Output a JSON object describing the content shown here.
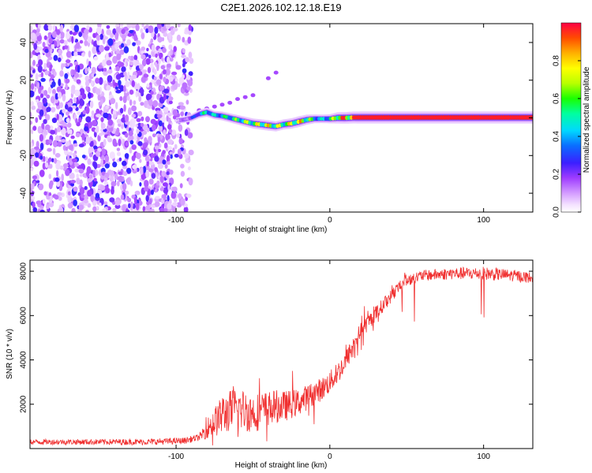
{
  "title": "C2E1.2026.102.12.18.E19",
  "chart_data": [
    {
      "type": "heatmap",
      "name": "spectrogram",
      "xlabel": "Height of straight line (km)",
      "ylabel": "Frequency (Hz)",
      "xlim": [
        -195,
        132
      ],
      "ylim": [
        -50,
        50
      ],
      "xticks": [
        -100,
        0,
        100
      ],
      "yticks": [
        -40,
        -20,
        0,
        20,
        40
      ],
      "colorbar": {
        "label": "Normalized spectral amplitude",
        "range": [
          0,
          1
        ],
        "ticks": [
          0.0,
          0.2,
          0.4,
          0.6,
          0.8
        ],
        "tick_labels": [
          "0.0",
          "0.2",
          "0.4",
          "0.6",
          "0.8"
        ]
      },
      "noise_region_x": [
        -195,
        -90
      ],
      "signal_ridge": {
        "x": [
          -100,
          -95,
          -90,
          -85,
          -80,
          -75,
          -70,
          -65,
          -60,
          -55,
          -50,
          -45,
          -40,
          -35,
          -30,
          -25,
          -20,
          -15,
          -10,
          -5,
          0,
          5,
          10,
          15,
          20,
          40,
          60,
          80,
          100,
          120,
          132
        ],
        "freq": [
          -1.5,
          -1,
          0,
          2,
          3,
          1.5,
          1,
          0,
          -1,
          -2,
          -3,
          -3.5,
          -4,
          -4.5,
          -3.5,
          -3,
          -2,
          -1,
          -0.5,
          -0.5,
          -0.5,
          0,
          0,
          0.2,
          0.2,
          0.2,
          0.2,
          0.2,
          0.2,
          0.2,
          0.2
        ],
        "amplitude": [
          0.1,
          0.15,
          0.25,
          0.4,
          0.55,
          0.45,
          0.5,
          0.55,
          0.6,
          0.65,
          0.7,
          0.72,
          0.75,
          0.7,
          0.7,
          0.75,
          0.8,
          0.7,
          0.5,
          0.45,
          0.55,
          0.85,
          0.9,
          0.95,
          0.97,
          0.97,
          0.97,
          0.97,
          0.97,
          0.97,
          0.97
        ]
      },
      "aliased_branch": {
        "x": [
          -85,
          -80,
          -75,
          -70,
          -65,
          -60,
          -55,
          -50,
          -40,
          -35
        ],
        "freq": [
          4,
          5,
          6,
          7,
          8,
          10,
          11,
          12,
          21,
          24
        ]
      }
    },
    {
      "type": "line",
      "name": "snr",
      "xlabel": "Height of straight line (km)",
      "ylabel": "SNR (10 * v/v)",
      "xlim": [
        -195,
        132
      ],
      "ylim": [
        0,
        8500
      ],
      "xticks": [
        -100,
        0,
        100
      ],
      "yticks": [
        2000,
        4000,
        6000,
        8000
      ],
      "color": "#f03030",
      "envelope": {
        "x": [
          -195,
          -160,
          -120,
          -95,
          -85,
          -80,
          -75,
          -70,
          -65,
          -60,
          -55,
          -50,
          -45,
          -40,
          -35,
          -30,
          -25,
          -20,
          -15,
          -10,
          -5,
          0,
          5,
          10,
          15,
          20,
          25,
          30,
          35,
          40,
          45,
          50,
          55,
          60,
          70,
          80,
          90,
          100,
          110,
          120,
          132
        ],
        "snr": [
          300,
          300,
          300,
          350,
          500,
          900,
          1200,
          1500,
          1700,
          1800,
          1700,
          1600,
          1700,
          1800,
          1900,
          1900,
          2000,
          2100,
          2300,
          2500,
          2700,
          3000,
          3400,
          3900,
          4600,
          5300,
          5700,
          6100,
          6500,
          6900,
          7300,
          7600,
          7700,
          7800,
          7850,
          7900,
          7900,
          7900,
          7850,
          7800,
          7700
        ]
      },
      "noise_amplitude": {
        "x": [
          -195,
          -85,
          -80,
          -70,
          -60,
          -50,
          -40,
          -30,
          -20,
          -10,
          0,
          10,
          20,
          30,
          40,
          50,
          60,
          100,
          132
        ],
        "amp": [
          120,
          150,
          450,
          900,
          1000,
          900,
          800,
          700,
          600,
          550,
          500,
          500,
          400,
          350,
          300,
          300,
          250,
          300,
          250
        ]
      }
    }
  ]
}
